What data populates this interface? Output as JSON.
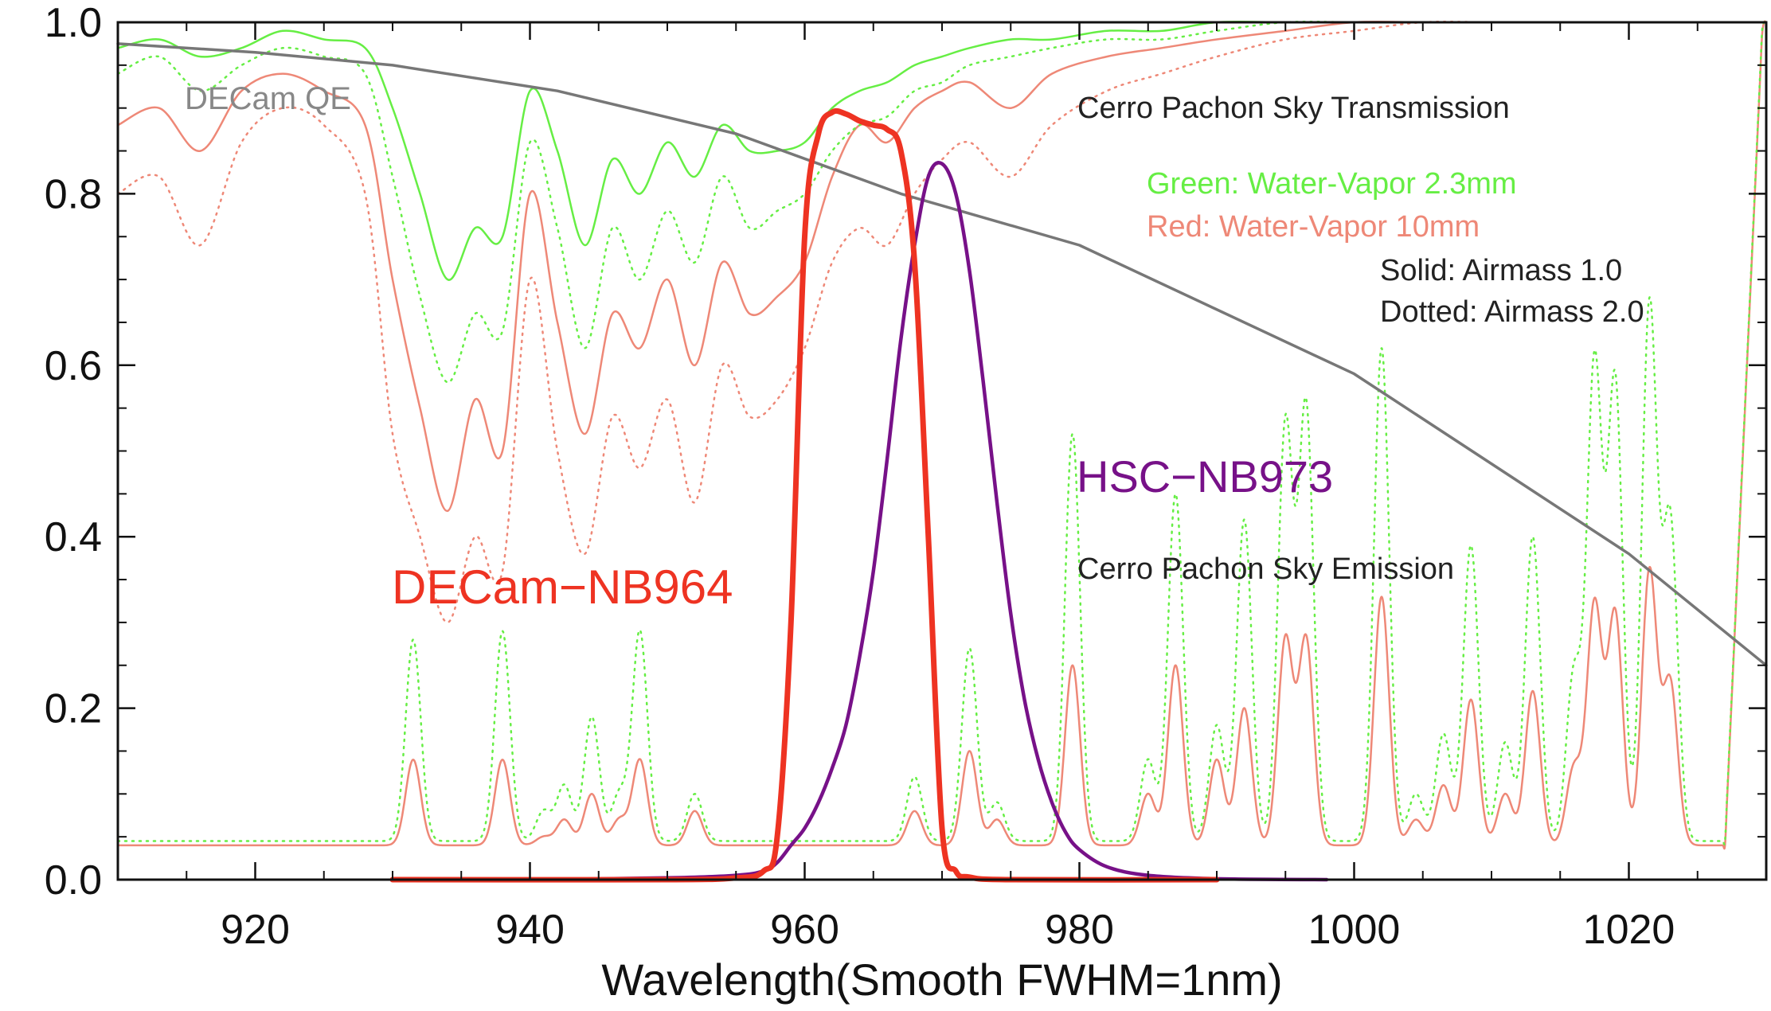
{
  "chart_data": {
    "type": "line",
    "title": "",
    "xlabel": "Wavelength(Smooth FWHM=1nm)",
    "ylabel": "",
    "xlim": [
      910,
      1030
    ],
    "ylim": [
      0,
      1.0
    ],
    "x_ticks": [
      920,
      940,
      960,
      980,
      1000,
      1020
    ],
    "x_tick_labels": [
      "920",
      "940",
      "960",
      "980",
      "1000",
      "1020"
    ],
    "y_ticks": [
      0.0,
      0.2,
      0.4,
      0.6,
      0.8,
      1.0
    ],
    "y_tick_labels": [
      "0.0",
      "0.2",
      "0.4",
      "0.6",
      "0.8",
      "1.0"
    ],
    "grid": false,
    "annotations": {
      "decam_qe": "DECam QE",
      "sky_transmission": "Cerro Pachon Sky Transmission",
      "green_note": "Green: Water-Vapor 2.3mm",
      "red_note": "Red: Water-Vapor 10mm",
      "solid_note": "Solid: Airmass 1.0",
      "dotted_note": "Dotted: Airmass 2.0",
      "hsc_label": "HSC−NB973",
      "decam_nb964_label": "DECam−NB964",
      "sky_emission": "Cerro Pachon Sky Emission"
    },
    "colors": {
      "green": "#66ee44",
      "red": "#ee8877",
      "qe": "#777777",
      "decam": "#ee3322",
      "hsc": "#771188",
      "text_dark": "#222222",
      "text_grey": "#888888"
    },
    "series": [
      {
        "name": "DECam QE",
        "color": "#777777",
        "x": [
          910,
          920,
          930,
          942,
          955,
          967,
          980,
          1000,
          1020,
          1030
        ],
        "y": [
          0.975,
          0.965,
          0.95,
          0.92,
          0.87,
          0.8,
          0.74,
          0.59,
          0.38,
          0.25
        ]
      },
      {
        "name": "DECam-NB964",
        "color": "#ee3322",
        "x": [
          930,
          950,
          955,
          957,
          958,
          959,
          960,
          961,
          962,
          963,
          964,
          965,
          966,
          967,
          968,
          969,
          970,
          971,
          972,
          975,
          990
        ],
        "y": [
          0.0,
          0.0,
          0.002,
          0.01,
          0.05,
          0.3,
          0.75,
          0.87,
          0.895,
          0.893,
          0.885,
          0.88,
          0.875,
          0.85,
          0.72,
          0.4,
          0.06,
          0.01,
          0.003,
          0.0,
          0.0
        ]
      },
      {
        "name": "HSC-NB973",
        "color": "#771188",
        "x": [
          940,
          950,
          955,
          957,
          958,
          959,
          960,
          961,
          962,
          963,
          964,
          965,
          966,
          967,
          968,
          969,
          970,
          971,
          972,
          973,
          974,
          975,
          976,
          977,
          978,
          979,
          980,
          982,
          985,
          990,
          998
        ],
        "y": [
          0.0,
          0.002,
          0.005,
          0.01,
          0.02,
          0.04,
          0.06,
          0.09,
          0.13,
          0.18,
          0.26,
          0.36,
          0.49,
          0.63,
          0.74,
          0.82,
          0.835,
          0.8,
          0.71,
          0.58,
          0.44,
          0.31,
          0.21,
          0.14,
          0.09,
          0.055,
          0.035,
          0.015,
          0.005,
          0.001,
          0.0
        ]
      },
      {
        "name": "Sky Transmission, Water-Vapor 2.3mm, Airmass 1.0",
        "color": "#66ee44",
        "dash": "solid",
        "x": [
          910,
          913,
          916,
          919,
          922,
          925,
          928,
          930,
          932,
          934,
          936,
          938,
          940,
          942,
          944,
          946,
          948,
          950,
          952,
          954,
          956,
          958,
          960,
          962,
          964,
          966,
          968,
          970,
          972,
          975,
          978,
          982,
          986,
          990,
          995,
          1000,
          1005,
          1010,
          1015,
          1020,
          1025,
          1030
        ],
        "y": [
          0.97,
          0.98,
          0.96,
          0.97,
          0.99,
          0.98,
          0.97,
          0.9,
          0.8,
          0.7,
          0.76,
          0.75,
          0.92,
          0.85,
          0.74,
          0.84,
          0.8,
          0.86,
          0.82,
          0.88,
          0.85,
          0.85,
          0.86,
          0.9,
          0.92,
          0.93,
          0.95,
          0.96,
          0.97,
          0.98,
          0.98,
          0.99,
          0.99,
          1.0,
          1.0,
          1.0,
          1.0,
          1.0,
          1.0,
          1.0,
          1.0,
          1.0
        ]
      },
      {
        "name": "Sky Transmission, Water-Vapor 2.3mm, Airmass 2.0",
        "color": "#66ee44",
        "dash": "dotted",
        "x": [
          910,
          913,
          916,
          919,
          922,
          925,
          928,
          930,
          932,
          934,
          936,
          938,
          940,
          942,
          944,
          946,
          948,
          950,
          952,
          954,
          956,
          958,
          960,
          962,
          964,
          966,
          968,
          970,
          972,
          975,
          978,
          982,
          986,
          990,
          995,
          1000,
          1005,
          1010,
          1015,
          1020,
          1025,
          1030
        ],
        "y": [
          0.94,
          0.96,
          0.92,
          0.95,
          0.97,
          0.96,
          0.94,
          0.82,
          0.68,
          0.58,
          0.66,
          0.64,
          0.86,
          0.76,
          0.62,
          0.76,
          0.7,
          0.78,
          0.72,
          0.82,
          0.76,
          0.78,
          0.8,
          0.85,
          0.88,
          0.89,
          0.92,
          0.93,
          0.95,
          0.96,
          0.97,
          0.98,
          0.98,
          0.99,
          1.0,
          1.0,
          1.0,
          1.0,
          1.0,
          1.0,
          1.0,
          1.0
        ]
      },
      {
        "name": "Sky Transmission, Water-Vapor 10mm, Airmass 1.0",
        "color": "#ee8877",
        "dash": "solid",
        "x": [
          910,
          913,
          916,
          919,
          922,
          925,
          928,
          930,
          932,
          934,
          936,
          938,
          940,
          942,
          944,
          946,
          948,
          950,
          952,
          954,
          956,
          958,
          960,
          962,
          964,
          966,
          968,
          970,
          972,
          975,
          978,
          982,
          986,
          990,
          995,
          1000,
          1005,
          1010,
          1015,
          1020,
          1025,
          1030
        ],
        "y": [
          0.88,
          0.9,
          0.85,
          0.92,
          0.94,
          0.92,
          0.88,
          0.7,
          0.55,
          0.43,
          0.56,
          0.5,
          0.8,
          0.65,
          0.52,
          0.66,
          0.62,
          0.7,
          0.6,
          0.72,
          0.66,
          0.68,
          0.72,
          0.82,
          0.88,
          0.86,
          0.9,
          0.92,
          0.93,
          0.9,
          0.94,
          0.96,
          0.97,
          0.98,
          0.99,
          1.0,
          1.0,
          1.0,
          1.0,
          1.0,
          1.0,
          1.0
        ]
      },
      {
        "name": "Sky Transmission, Water-Vapor 10mm, Airmass 2.0",
        "color": "#ee8877",
        "dash": "dotted",
        "x": [
          910,
          913,
          916,
          919,
          922,
          925,
          928,
          930,
          932,
          934,
          936,
          938,
          940,
          942,
          944,
          946,
          948,
          950,
          952,
          954,
          956,
          958,
          960,
          962,
          964,
          966,
          968,
          970,
          972,
          975,
          978,
          982,
          986,
          990,
          995,
          1000,
          1005,
          1010,
          1015,
          1020,
          1025,
          1030
        ],
        "y": [
          0.8,
          0.82,
          0.74,
          0.86,
          0.9,
          0.88,
          0.8,
          0.52,
          0.4,
          0.3,
          0.4,
          0.36,
          0.7,
          0.5,
          0.38,
          0.54,
          0.48,
          0.56,
          0.44,
          0.6,
          0.54,
          0.56,
          0.62,
          0.72,
          0.76,
          0.74,
          0.8,
          0.84,
          0.86,
          0.82,
          0.88,
          0.92,
          0.94,
          0.96,
          0.98,
          0.99,
          1.0,
          1.0,
          1.0,
          1.0,
          1.0,
          1.0
        ]
      },
      {
        "name": "Sky Emission, Airmass 1.0",
        "color": "#ee8877",
        "dash": "solid",
        "baseline": 0.04,
        "peaks_x": [
          931.5,
          938,
          941,
          942.5,
          944.5,
          946.5,
          948,
          952,
          968,
          972,
          974,
          979.5,
          985,
          987,
          990,
          992,
          995,
          996.5,
          1002,
          1004.5,
          1006.5,
          1008.5,
          1011,
          1013,
          1016,
          1017.5,
          1019,
          1021.5,
          1023
        ],
        "peaks_y": [
          0.14,
          0.14,
          0.05,
          0.07,
          0.1,
          0.07,
          0.14,
          0.08,
          0.08,
          0.15,
          0.07,
          0.25,
          0.1,
          0.25,
          0.14,
          0.2,
          0.28,
          0.28,
          0.33,
          0.07,
          0.11,
          0.21,
          0.1,
          0.22,
          0.13,
          0.32,
          0.31,
          0.36,
          0.23
        ]
      },
      {
        "name": "Sky Emission, Airmass 2.0",
        "color": "#66ee44",
        "dash": "dotted",
        "baseline": 0.045,
        "peaks_x": [
          931.5,
          938,
          941,
          942.5,
          944.5,
          946.5,
          948,
          952,
          968,
          972,
          974,
          979.5,
          985,
          987,
          990,
          992,
          995,
          996.5,
          1002,
          1004.5,
          1006.5,
          1008.5,
          1011,
          1013,
          1016,
          1017.5,
          1019,
          1021.5,
          1023
        ],
        "peaks_y": [
          0.28,
          0.29,
          0.08,
          0.11,
          0.19,
          0.1,
          0.29,
          0.1,
          0.12,
          0.27,
          0.09,
          0.52,
          0.14,
          0.45,
          0.18,
          0.42,
          0.53,
          0.55,
          0.62,
          0.1,
          0.17,
          0.39,
          0.16,
          0.4,
          0.24,
          0.6,
          0.58,
          0.67,
          0.42
        ]
      }
    ]
  }
}
